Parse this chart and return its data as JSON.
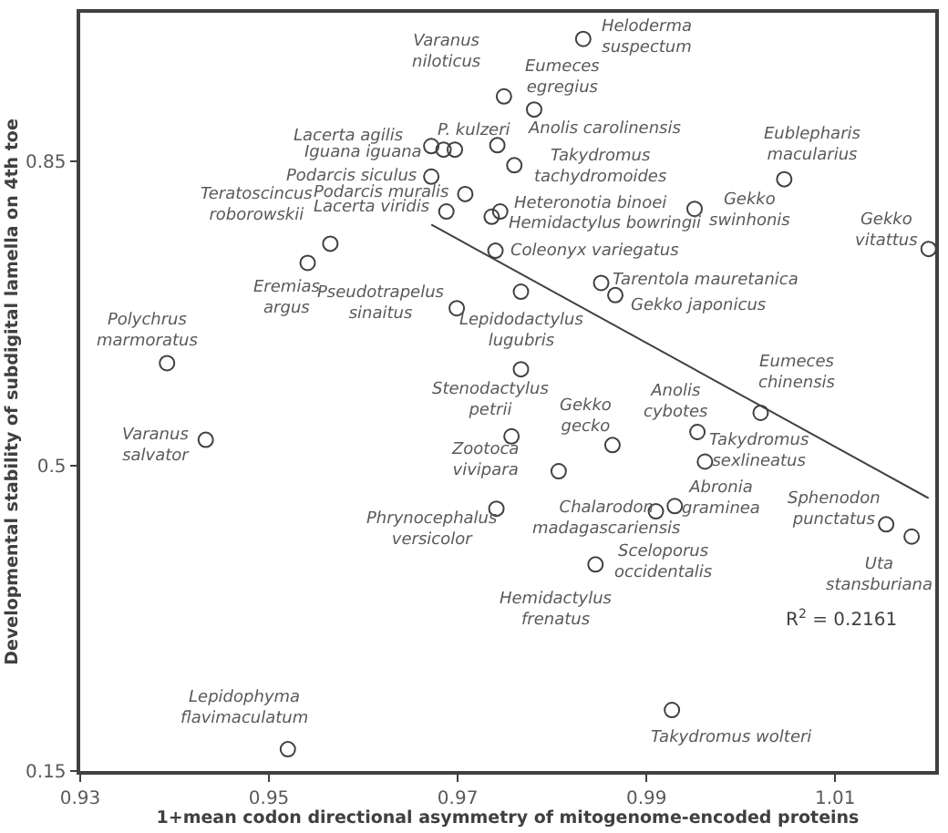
{
  "chart_data": {
    "type": "scatter",
    "xlabel": "1+mean codon directional asymmetry of mitogenome-encoded proteins",
    "ylabel": "Developmental stability of subdigital lamella on 4th toe",
    "xlim": [
      0.93,
      1.0206
    ],
    "ylim": [
      0.15,
      1.02
    ],
    "xticks": [
      0.93,
      0.95,
      0.97,
      0.99,
      1.01
    ],
    "yticks": [
      0.15,
      0.5,
      0.85
    ],
    "marker": "circle",
    "series": [
      {
        "color": "#404040",
        "x": [
          0.9392,
          0.9541,
          0.9565,
          0.9672,
          0.9685,
          0.9697,
          0.9672,
          0.9708,
          0.9688,
          0.9699,
          0.9433,
          0.952,
          0.9833,
          0.9749,
          0.9781,
          0.9742,
          0.976,
          0.9745,
          0.9736,
          0.9951,
          1.0046,
          1.0199,
          0.974,
          0.9852,
          0.9867,
          0.9767,
          0.9767,
          1.0021,
          0.9757,
          0.9864,
          0.9954,
          0.9962,
          0.9807,
          0.9741,
          0.991,
          0.993,
          0.9846,
          1.0154,
          1.0181,
          0.9927
        ],
        "values": [
          0.618,
          0.733,
          0.755,
          0.867,
          0.863,
          0.863,
          0.832,
          0.812,
          0.792,
          0.681,
          0.53,
          0.175,
          0.99,
          0.924,
          0.909,
          0.868,
          0.845,
          0.792,
          0.786,
          0.795,
          0.829,
          0.749,
          0.747,
          0.71,
          0.696,
          0.7,
          0.611,
          0.561,
          0.534,
          0.524,
          0.539,
          0.505,
          0.494,
          0.451,
          0.448,
          0.454,
          0.387,
          0.433,
          0.419,
          0.22
        ]
      },
      {
        "type": "line",
        "color": "#404040",
        "line_style": "solid",
        "marker": "none",
        "x": [
          0.9672,
          1.0199
        ],
        "values": [
          0.777,
          0.463
        ]
      }
    ],
    "annotations": [
      {
        "text": "Polychrus\nmarmoratus",
        "x": 0.9392,
        "y": 0.618
      },
      {
        "text": "Eremias\nargus",
        "x": 0.9541,
        "y": 0.733
      },
      {
        "text": "Teratoscincus\nroborowskii",
        "x": 0.9565,
        "y": 0.755
      },
      {
        "text": "Lacerta agilis",
        "x": 0.9672,
        "y": 0.867
      },
      {
        "text": "Iguana iguana",
        "x": 0.9685,
        "y": 0.863
      },
      {
        "text": "P. kulzeri",
        "x": 0.9697,
        "y": 0.863
      },
      {
        "text": "Podarcis siculus",
        "x": 0.9672,
        "y": 0.832
      },
      {
        "text": "Podarcis muralis",
        "x": 0.9708,
        "y": 0.812
      },
      {
        "text": "Lacerta viridis",
        "x": 0.9688,
        "y": 0.792
      },
      {
        "text": "Pseudotrapelus\nsinaitus",
        "x": 0.9699,
        "y": 0.681
      },
      {
        "text": "Varanus\nsalvator",
        "x": 0.9433,
        "y": 0.53
      },
      {
        "text": "Lepidophyma\nflavimaculatum",
        "x": 0.952,
        "y": 0.175
      },
      {
        "text": "Heloderma\nsuspectum",
        "x": 0.9833,
        "y": 0.99
      },
      {
        "text": "Varanus\nniloticus",
        "x": 0.9749,
        "y": 0.924
      },
      {
        "text": "Eumeces\negregius",
        "x": 0.9781,
        "y": 0.909
      },
      {
        "text": "Anolis carolinensis",
        "x": 0.9742,
        "y": 0.868
      },
      {
        "text": "Takydromus\ntachydromoides",
        "x": 0.976,
        "y": 0.845
      },
      {
        "text": "Heteronotia binoei",
        "x": 0.9745,
        "y": 0.792
      },
      {
        "text": "Hemidactylus bowringii",
        "x": 0.9736,
        "y": 0.786
      },
      {
        "text": "Gekko\nswinhonis",
        "x": 0.9951,
        "y": 0.795
      },
      {
        "text": "Eublepharis\nmacularius",
        "x": 1.0046,
        "y": 0.829
      },
      {
        "text": "Gekko\nvitattus",
        "x": 1.0199,
        "y": 0.749
      },
      {
        "text": "Coleonyx variegatus",
        "x": 0.974,
        "y": 0.747
      },
      {
        "text": "Tarentola mauretanica",
        "x": 0.9852,
        "y": 0.71
      },
      {
        "text": "Gekko japonicus",
        "x": 0.9867,
        "y": 0.696
      },
      {
        "text": "Lepidodactylus\nlugubris",
        "x": 0.9767,
        "y": 0.7
      },
      {
        "text": "Stenodactylus\npetrii",
        "x": 0.9767,
        "y": 0.611
      },
      {
        "text": "Eumeces\nchinensis",
        "x": 1.0021,
        "y": 0.561
      },
      {
        "text": "Zootoca\nvivipara",
        "x": 0.9757,
        "y": 0.534
      },
      {
        "text": "Gekko\ngecko",
        "x": 0.9864,
        "y": 0.524
      },
      {
        "text": "Anolis\ncybotes",
        "x": 0.9954,
        "y": 0.539
      },
      {
        "text": "Takydromus\nsexlineatus",
        "x": 0.9962,
        "y": 0.505
      },
      {
        "text": "Sceloporus\noccidentalis",
        "x": 0.9846,
        "y": 0.387
      },
      {
        "text": "Phrynocephalus\nversicolor",
        "x": 0.9741,
        "y": 0.451
      },
      {
        "text": "Chalarodon\nmadagascariensis",
        "x": 0.991,
        "y": 0.448
      },
      {
        "text": "Abronia\ngraminea",
        "x": 0.993,
        "y": 0.454
      },
      {
        "text": "Hemidactylus\nfrenatus",
        "x": 0.9846,
        "y": 0.387
      },
      {
        "text": "Sphenodon\npunctatus",
        "x": 1.0154,
        "y": 0.433
      },
      {
        "text": "Uta\nstansburiana",
        "x": 1.0181,
        "y": 0.419
      },
      {
        "text": "Takydromus wolteri",
        "x": 0.9927,
        "y": 0.22
      },
      "R$^{2}$ = 0.2161"
    ]
  }
}
